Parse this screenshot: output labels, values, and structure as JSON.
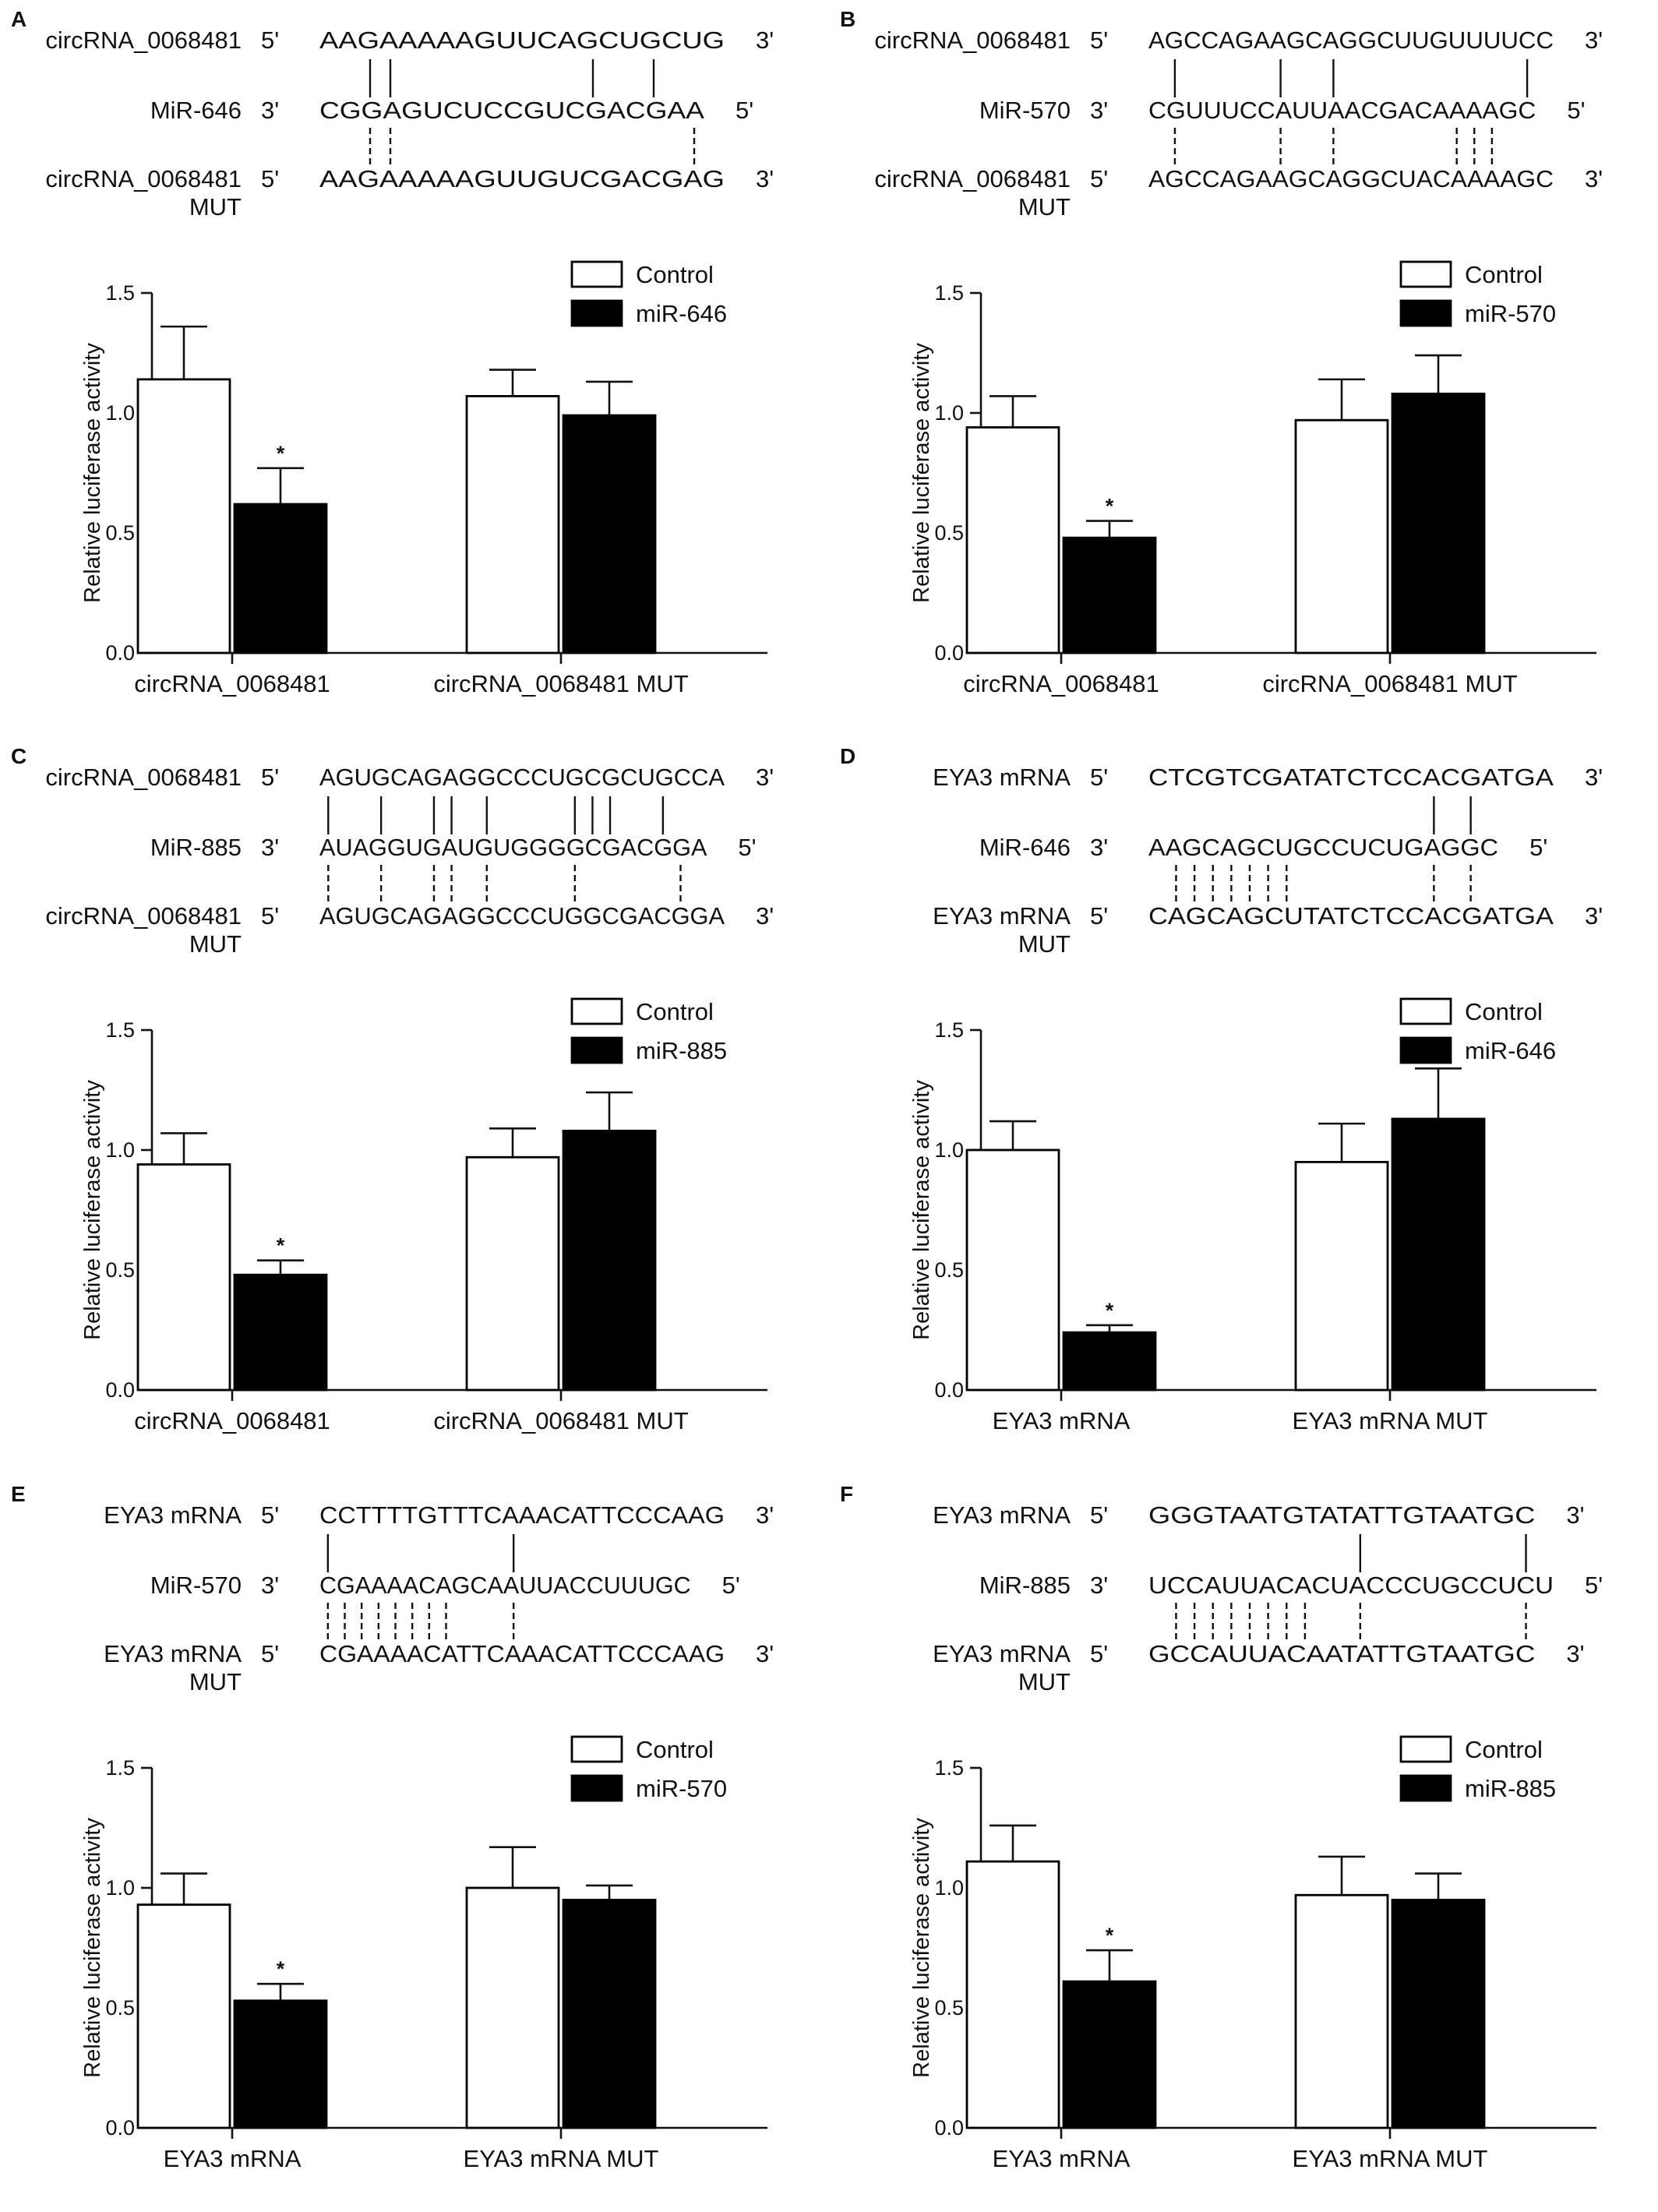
{
  "panels": [
    {
      "label": "A",
      "sequences": {
        "rows": [
          {
            "name": [
              "circRNA_0068481"
            ],
            "end5": "5'",
            "seq": "AAGAAAAAGUUCAGCUGCUG",
            "end3": "3'"
          },
          {
            "name": [
              "MiR-646"
            ],
            "end5": "3'",
            "seq": "CGGAGUCUCCGUCGACGAA",
            "end3": "5'"
          },
          {
            "name": [
              "circRNA_0068481",
              "MUT"
            ],
            "end5": "5'",
            "seq": "AAGAAAAAGUUGUCGACGAG",
            "end3": "3'"
          }
        ]
      },
      "chart_data": {
        "type": "bar",
        "ylabel": "Relative luciferase activity",
        "ylim": [
          0,
          1.5
        ],
        "yticks": [
          "0.0",
          "0.5",
          "1.0",
          "1.5"
        ],
        "categories": [
          "circRNA_0068481",
          "circRNA_0068481 MUT"
        ],
        "series": [
          {
            "name": "Control",
            "values": [
              1.14,
              1.07
            ],
            "errors": [
              0.22,
              0.11
            ]
          },
          {
            "name": "miR-646",
            "values": [
              0.62,
              0.99
            ],
            "errors": [
              0.15,
              0.14
            ]
          }
        ],
        "annotations": [
          {
            "text": "*",
            "series": 1,
            "category": 0
          }
        ],
        "legend_position": "top-right"
      }
    },
    {
      "label": "B",
      "sequences": {
        "rows": [
          {
            "name": [
              "circRNA_0068481"
            ],
            "end5": "5'",
            "seq": "AGCCAGAAGCAGGCUUGUUUUCC",
            "end3": "3'"
          },
          {
            "name": [
              "MiR-570"
            ],
            "end5": "3'",
            "seq": "CGUUUCCAUUAACGACAAAAGC",
            "end3": "5'"
          },
          {
            "name": [
              "circRNA_0068481",
              "MUT"
            ],
            "end5": "5'",
            "seq": "AGCCAGAAGCAGGCUACAAAAGC",
            "end3": "3'"
          }
        ]
      },
      "chart_data": {
        "type": "bar",
        "ylabel": "Relative luciferase activity",
        "ylim": [
          0,
          1.5
        ],
        "yticks": [
          "0.0",
          "0.5",
          "1.0",
          "1.5"
        ],
        "categories": [
          "circRNA_0068481",
          "circRNA_0068481 MUT"
        ],
        "series": [
          {
            "name": "Control",
            "values": [
              0.94,
              0.97
            ],
            "errors": [
              0.13,
              0.17
            ]
          },
          {
            "name": "miR-570",
            "values": [
              0.48,
              1.08
            ],
            "errors": [
              0.07,
              0.16
            ]
          }
        ],
        "annotations": [
          {
            "text": "*",
            "series": 1,
            "category": 0
          }
        ],
        "legend_position": "top-right"
      }
    },
    {
      "label": "C",
      "sequences": {
        "rows": [
          {
            "name": [
              "circRNA_0068481"
            ],
            "end5": "5'",
            "seq": "AGUGCAGAGGCCCUGCGCUGCCA",
            "end3": "3'"
          },
          {
            "name": [
              "MiR-885"
            ],
            "end5": "3'",
            "seq": "AUAGGUGAUGUGGGGCGACGGA",
            "end3": "5'"
          },
          {
            "name": [
              "circRNA_0068481",
              "MUT"
            ],
            "end5": "5'",
            "seq": "AGUGCAGAGGCCCUGGCGACGGA",
            "end3": "3'"
          }
        ]
      },
      "chart_data": {
        "type": "bar",
        "ylabel": "Relative luciferase activity",
        "ylim": [
          0,
          1.5
        ],
        "yticks": [
          "0.0",
          "0.5",
          "1.0",
          "1.5"
        ],
        "categories": [
          "circRNA_0068481",
          "circRNA_0068481 MUT"
        ],
        "series": [
          {
            "name": "Control",
            "values": [
              0.94,
              0.97
            ],
            "errors": [
              0.13,
              0.12
            ]
          },
          {
            "name": "miR-885",
            "values": [
              0.48,
              1.08
            ],
            "errors": [
              0.06,
              0.16
            ]
          }
        ],
        "annotations": [
          {
            "text": "*",
            "series": 1,
            "category": 0
          }
        ],
        "legend_position": "top-right"
      }
    },
    {
      "label": "D",
      "sequences": {
        "rows": [
          {
            "name": [
              "EYA3 mRNA"
            ],
            "end5": "5'",
            "seq": "CTCGTCGATATCTCCACGATGA",
            "end3": "3'"
          },
          {
            "name": [
              "MiR-646"
            ],
            "end5": "3'",
            "seq": "AAGCAGCUGCCUCUGAGGC",
            "end3": "5'"
          },
          {
            "name": [
              "EYA3 mRNA",
              "MUT"
            ],
            "end5": "5'",
            "seq": "CAGCAGCUTATCTCCACGATGA",
            "end3": "3'"
          }
        ]
      },
      "chart_data": {
        "type": "bar",
        "ylabel": "Relative luciferase activity",
        "ylim": [
          0,
          1.5
        ],
        "yticks": [
          "0.0",
          "0.5",
          "1.0",
          "1.5"
        ],
        "categories": [
          "EYA3 mRNA",
          "EYA3 mRNA MUT"
        ],
        "series": [
          {
            "name": "Control",
            "values": [
              1.0,
              0.95
            ],
            "errors": [
              0.12,
              0.16
            ]
          },
          {
            "name": "miR-646",
            "values": [
              0.24,
              1.13
            ],
            "errors": [
              0.03,
              0.21
            ]
          }
        ],
        "annotations": [
          {
            "text": "*",
            "series": 1,
            "category": 0
          }
        ],
        "legend_position": "top-right"
      }
    },
    {
      "label": "E",
      "sequences": {
        "rows": [
          {
            "name": [
              "EYA3 mRNA"
            ],
            "end5": "5'",
            "seq": "CCTTTTGTTTCAAACATTCCCAAG",
            "end3": "3'"
          },
          {
            "name": [
              "MiR-570"
            ],
            "end5": "3'",
            "seq": "CGAAAACAGCAAUUACCUUUGC",
            "end3": "5'"
          },
          {
            "name": [
              "EYA3 mRNA",
              "MUT"
            ],
            "end5": "5'",
            "seq": "CGAAAACATTCAAACATTCCCAAG",
            "end3": "3'"
          }
        ]
      },
      "chart_data": {
        "type": "bar",
        "ylabel": "Relative luciferase activity",
        "ylim": [
          0,
          1.5
        ],
        "yticks": [
          "0.0",
          "0.5",
          "1.0",
          "1.5"
        ],
        "categories": [
          "EYA3 mRNA",
          "EYA3 mRNA MUT"
        ],
        "series": [
          {
            "name": "Control",
            "values": [
              0.93,
              1.0
            ],
            "errors": [
              0.13,
              0.17
            ]
          },
          {
            "name": "miR-570",
            "values": [
              0.53,
              0.95
            ],
            "errors": [
              0.07,
              0.06
            ]
          }
        ],
        "annotations": [
          {
            "text": "*",
            "series": 1,
            "category": 0
          }
        ],
        "legend_position": "top-right"
      }
    },
    {
      "label": "F",
      "sequences": {
        "rows": [
          {
            "name": [
              "EYA3 mRNA"
            ],
            "end5": "5'",
            "seq": "GGGTAATGTATATTGTAATGC",
            "end3": "3'"
          },
          {
            "name": [
              "MiR-885"
            ],
            "end5": "3'",
            "seq": "UCCAUUACACUACCCUGCCUCU",
            "end3": "5'"
          },
          {
            "name": [
              "EYA3 mRNA",
              "MUT"
            ],
            "end5": "5'",
            "seq": "GCCAUUACAATATTGTAATGC",
            "end3": "3'"
          }
        ]
      },
      "chart_data": {
        "type": "bar",
        "ylabel": "Relative luciferase activity",
        "ylim": [
          0,
          1.5
        ],
        "yticks": [
          "0.0",
          "0.5",
          "1.0",
          "1.5"
        ],
        "categories": [
          "EYA3 mRNA",
          "EYA3 mRNA MUT"
        ],
        "series": [
          {
            "name": "Control",
            "values": [
              1.11,
              0.97
            ],
            "errors": [
              0.15,
              0.16
            ]
          },
          {
            "name": "miR-885",
            "values": [
              0.61,
              0.95
            ],
            "errors": [
              0.13,
              0.11
            ]
          }
        ],
        "annotations": [
          {
            "text": "*",
            "series": 1,
            "category": 0
          }
        ],
        "legend_position": "top-right"
      }
    }
  ]
}
